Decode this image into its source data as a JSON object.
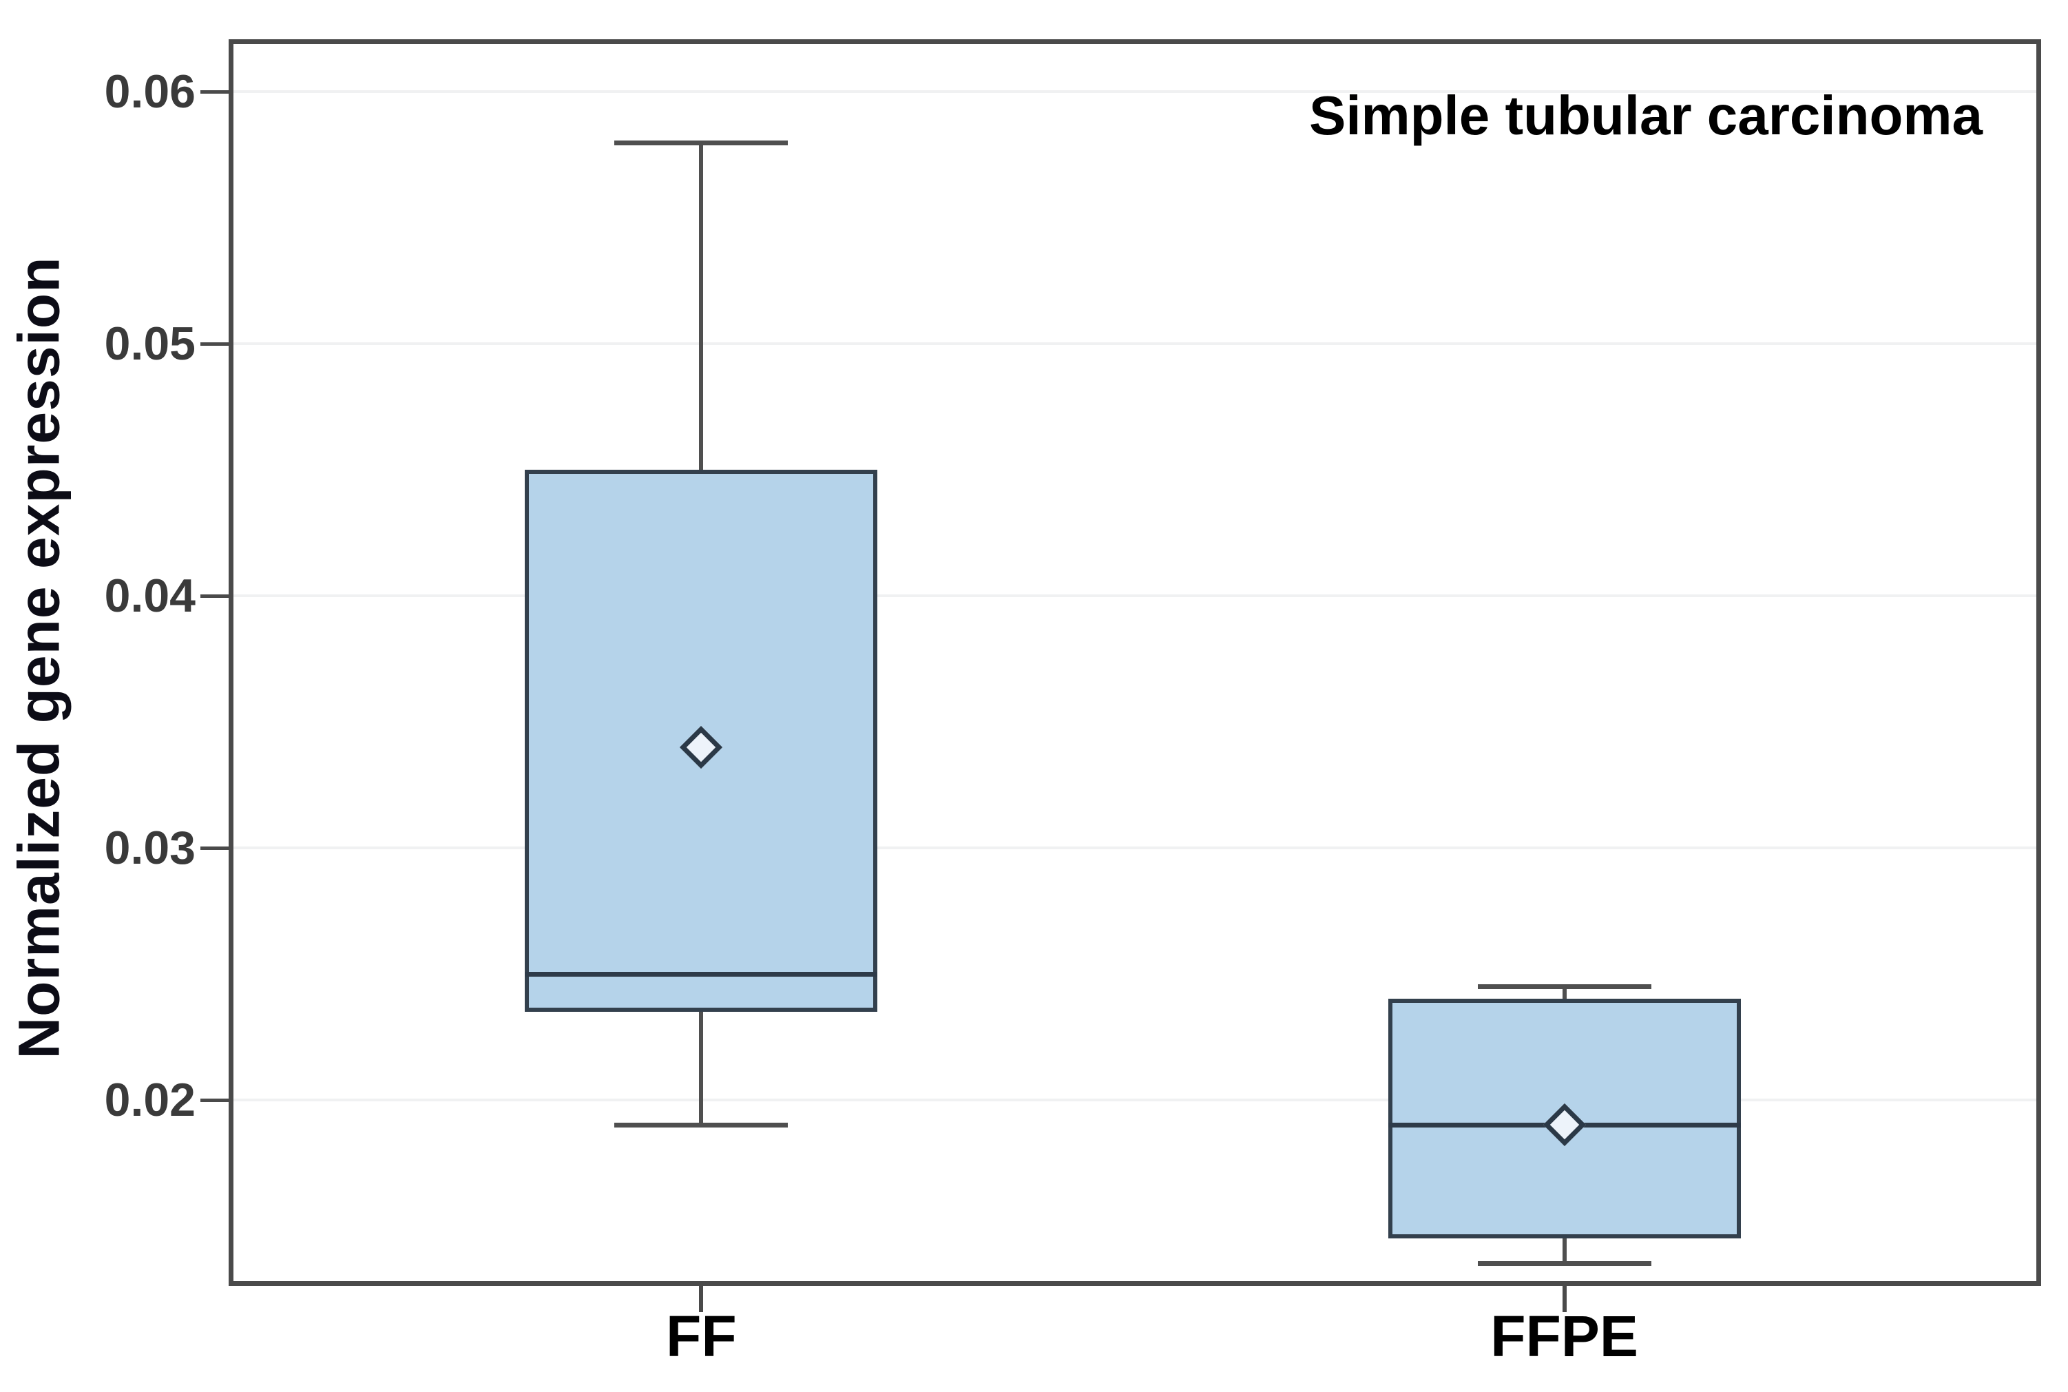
{
  "chart_data": {
    "type": "box",
    "title": "Simple tubular carcinoma",
    "ylabel": "Normalized gene expression",
    "xlabel": "",
    "categories": [
      "FF",
      "FFPE"
    ],
    "series": [
      {
        "name": "FF",
        "whisker_low": 0.019,
        "q1": 0.0235,
        "median": 0.025,
        "q3": 0.045,
        "whisker_high": 0.058,
        "mean": 0.034
      },
      {
        "name": "FFPE",
        "whisker_low": 0.0135,
        "q1": 0.0145,
        "median": 0.019,
        "q3": 0.024,
        "whisker_high": 0.0245,
        "mean": 0.019
      }
    ],
    "y_ticks": [
      0.06,
      0.05,
      0.04,
      0.03,
      0.02
    ],
    "y_tick_labels": [
      "0.06",
      "0.05",
      "0.04",
      "0.03",
      "0.02"
    ],
    "ylim": [
      0.0128,
      0.0619
    ],
    "grid": true,
    "legend": "none",
    "colors": {
      "box_fill": "#b5d3ea",
      "box_border": "#33404d",
      "median": "#2e3b49",
      "whisker": "#4f4f4f",
      "frame": "#4a4a4a",
      "gridline": "#f0f1f2",
      "tick_label": "#3a3a3a",
      "title": "#000000",
      "axis_label": "#0c0c16"
    }
  }
}
